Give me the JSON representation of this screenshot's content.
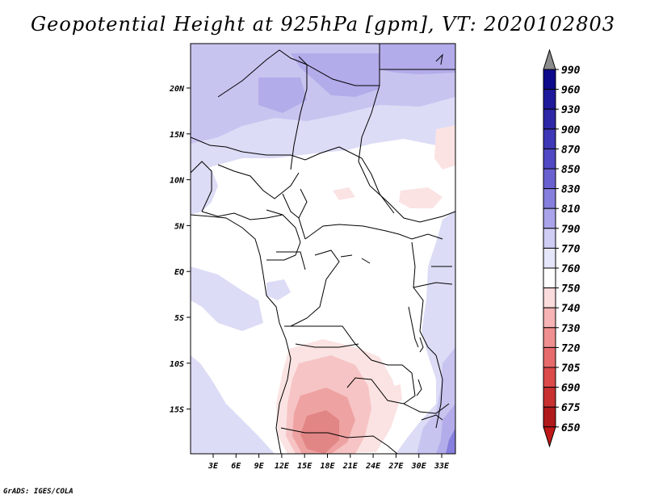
{
  "title": "Geopotential Height at 925hPa [gpm], VT: 2020102803",
  "footer": "GrADS: IGES/COLA",
  "lat_labels": [
    "20N",
    "15N",
    "10N",
    "5N",
    "EQ",
    "5S",
    "10S",
    "15S"
  ],
  "lon_labels": [
    "3E",
    "6E",
    "9E",
    "12E",
    "15E",
    "18E",
    "21E",
    "24E",
    "27E",
    "30E",
    "33E"
  ],
  "colorbar": {
    "levels": [
      "990",
      "960",
      "930",
      "900",
      "870",
      "850",
      "830",
      "810",
      "790",
      "770",
      "760",
      "750",
      "740",
      "730",
      "720",
      "705",
      "690",
      "675",
      "650"
    ],
    "colors": [
      "#8c8c8c",
      "#0d0a8c",
      "#1f1a9c",
      "#2e27a8",
      "#3e37b7",
      "#5048c4",
      "#6a61d1",
      "#877fdd",
      "#aaa5ea",
      "#cfcdf4",
      "#e6e6fa",
      "#ffffff",
      "#fbdcdc",
      "#f6b4b4",
      "#f08f8f",
      "#e86b6b",
      "#dc4a4a",
      "#c93030",
      "#b11a1a",
      "#c01818"
    ]
  },
  "map": {
    "region": "Central Africa",
    "lon_range": [
      0,
      35
    ],
    "lat_range": [
      -20,
      24
    ],
    "field_colors": {
      "background": "#ffffff",
      "lavender_light": "#dcdcf6",
      "lavender": "#c8c4f0",
      "purple": "#b2acea",
      "pink_light": "#fbe3e3",
      "pink": "#f6c4c4",
      "pink_dark": "#eea2a2",
      "red": "#e28585"
    }
  }
}
